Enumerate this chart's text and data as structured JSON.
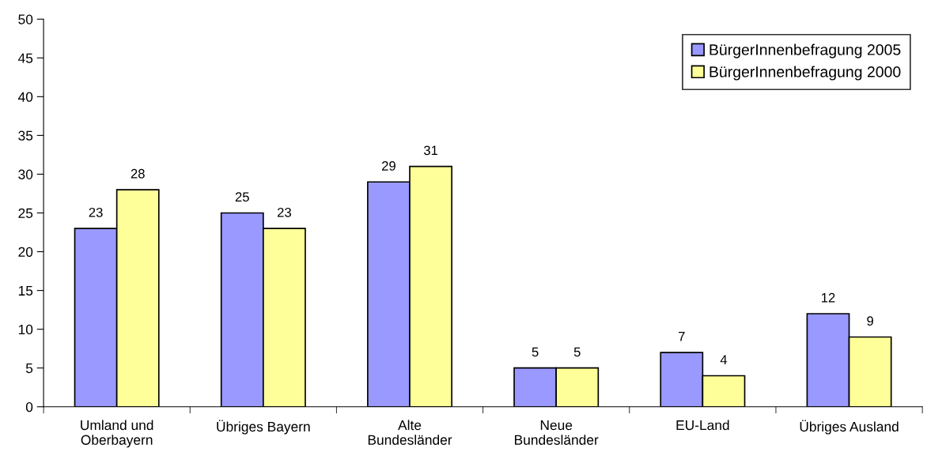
{
  "chart_data": {
    "type": "bar",
    "categories": [
      "Umland und\nOberbayern",
      "Übriges Bayern",
      "Alte\nBundesländer",
      "Neue\nBundesländer",
      "EU-Land",
      "Übriges Ausland"
    ],
    "series": [
      {
        "name": "BürgerInnenbefragung 2005",
        "color": "#9999ff",
        "values": [
          23,
          25,
          29,
          5,
          7,
          12
        ]
      },
      {
        "name": "BürgerInnenbefragung 2000",
        "color": "#ffff99",
        "values": [
          28,
          23,
          31,
          5,
          4,
          9
        ]
      }
    ],
    "ylim": [
      0,
      50
    ],
    "yticks": [
      0,
      5,
      10,
      15,
      20,
      25,
      30,
      35,
      40,
      45,
      50
    ],
    "grid": false,
    "legend": "top right",
    "data_labels": true
  }
}
